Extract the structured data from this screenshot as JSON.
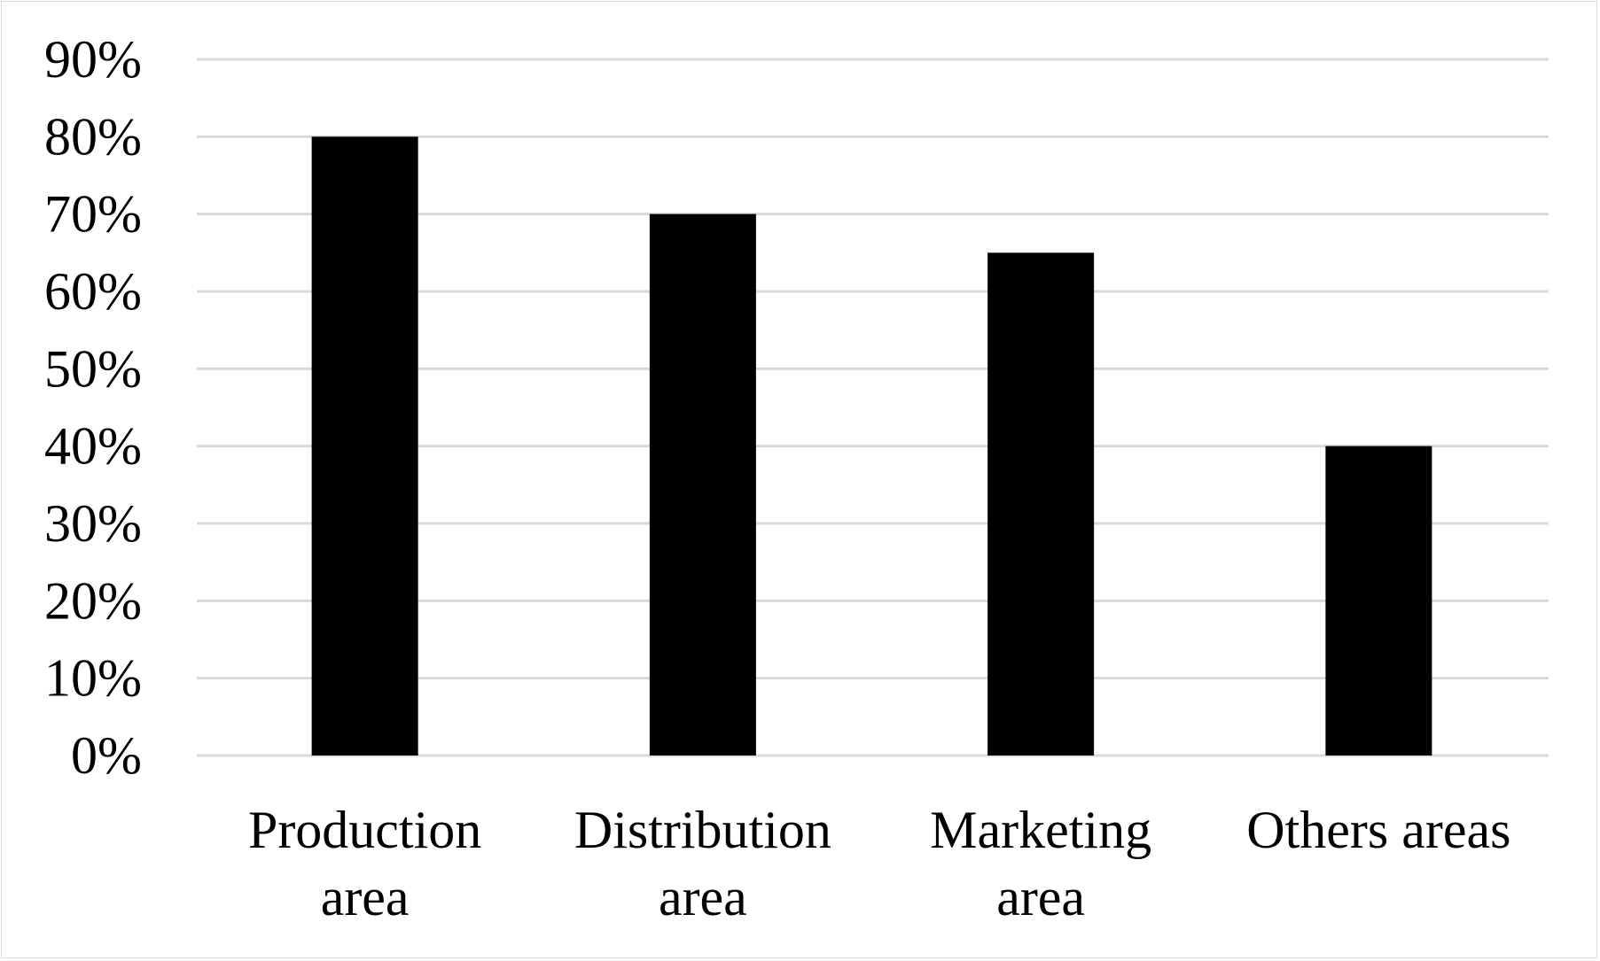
{
  "chart_data": {
    "type": "bar",
    "categories": [
      [
        "Production",
        "area"
      ],
      [
        "Distribution",
        "area"
      ],
      [
        "Marketing",
        "area"
      ],
      [
        "Others areas"
      ]
    ],
    "values": [
      80,
      70,
      65,
      40
    ],
    "unit": "%",
    "ylim": [
      0,
      90
    ],
    "yticks": [
      "0%",
      "10%",
      "20%",
      "30%",
      "40%",
      "50%",
      "60%",
      "70%",
      "80%",
      "90%"
    ],
    "title": "",
    "xlabel": "",
    "ylabel": "",
    "grid": true,
    "legend": "none",
    "colors": {
      "bar": "#000000",
      "grid": "#d9d9d9",
      "border": "#d9d9d9",
      "text": "#000000"
    }
  }
}
